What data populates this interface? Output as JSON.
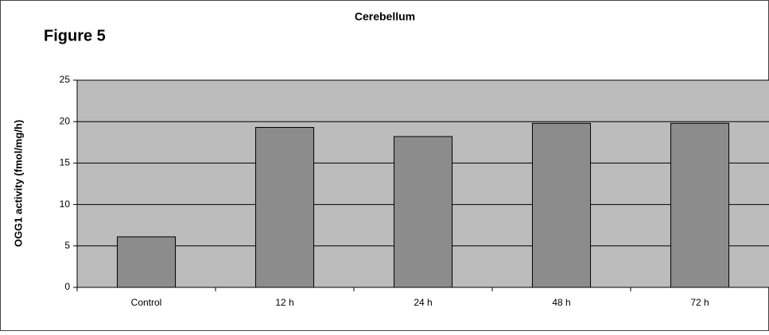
{
  "chart_data": {
    "type": "bar",
    "figure_label": "Figure 5",
    "title": "Cerebellum",
    "y_label": "OGG1 activity (fmol/mg/h)",
    "categories": [
      "Control",
      "12 h",
      "24 h",
      "48 h",
      "72 h"
    ],
    "values": [
      6.1,
      19.3,
      18.2,
      19.8,
      19.8
    ],
    "color": "#8c8c8c",
    "ylim": [
      0,
      25
    ],
    "yticks": [
      0,
      5,
      10,
      15,
      20,
      25
    ],
    "grid": true
  }
}
